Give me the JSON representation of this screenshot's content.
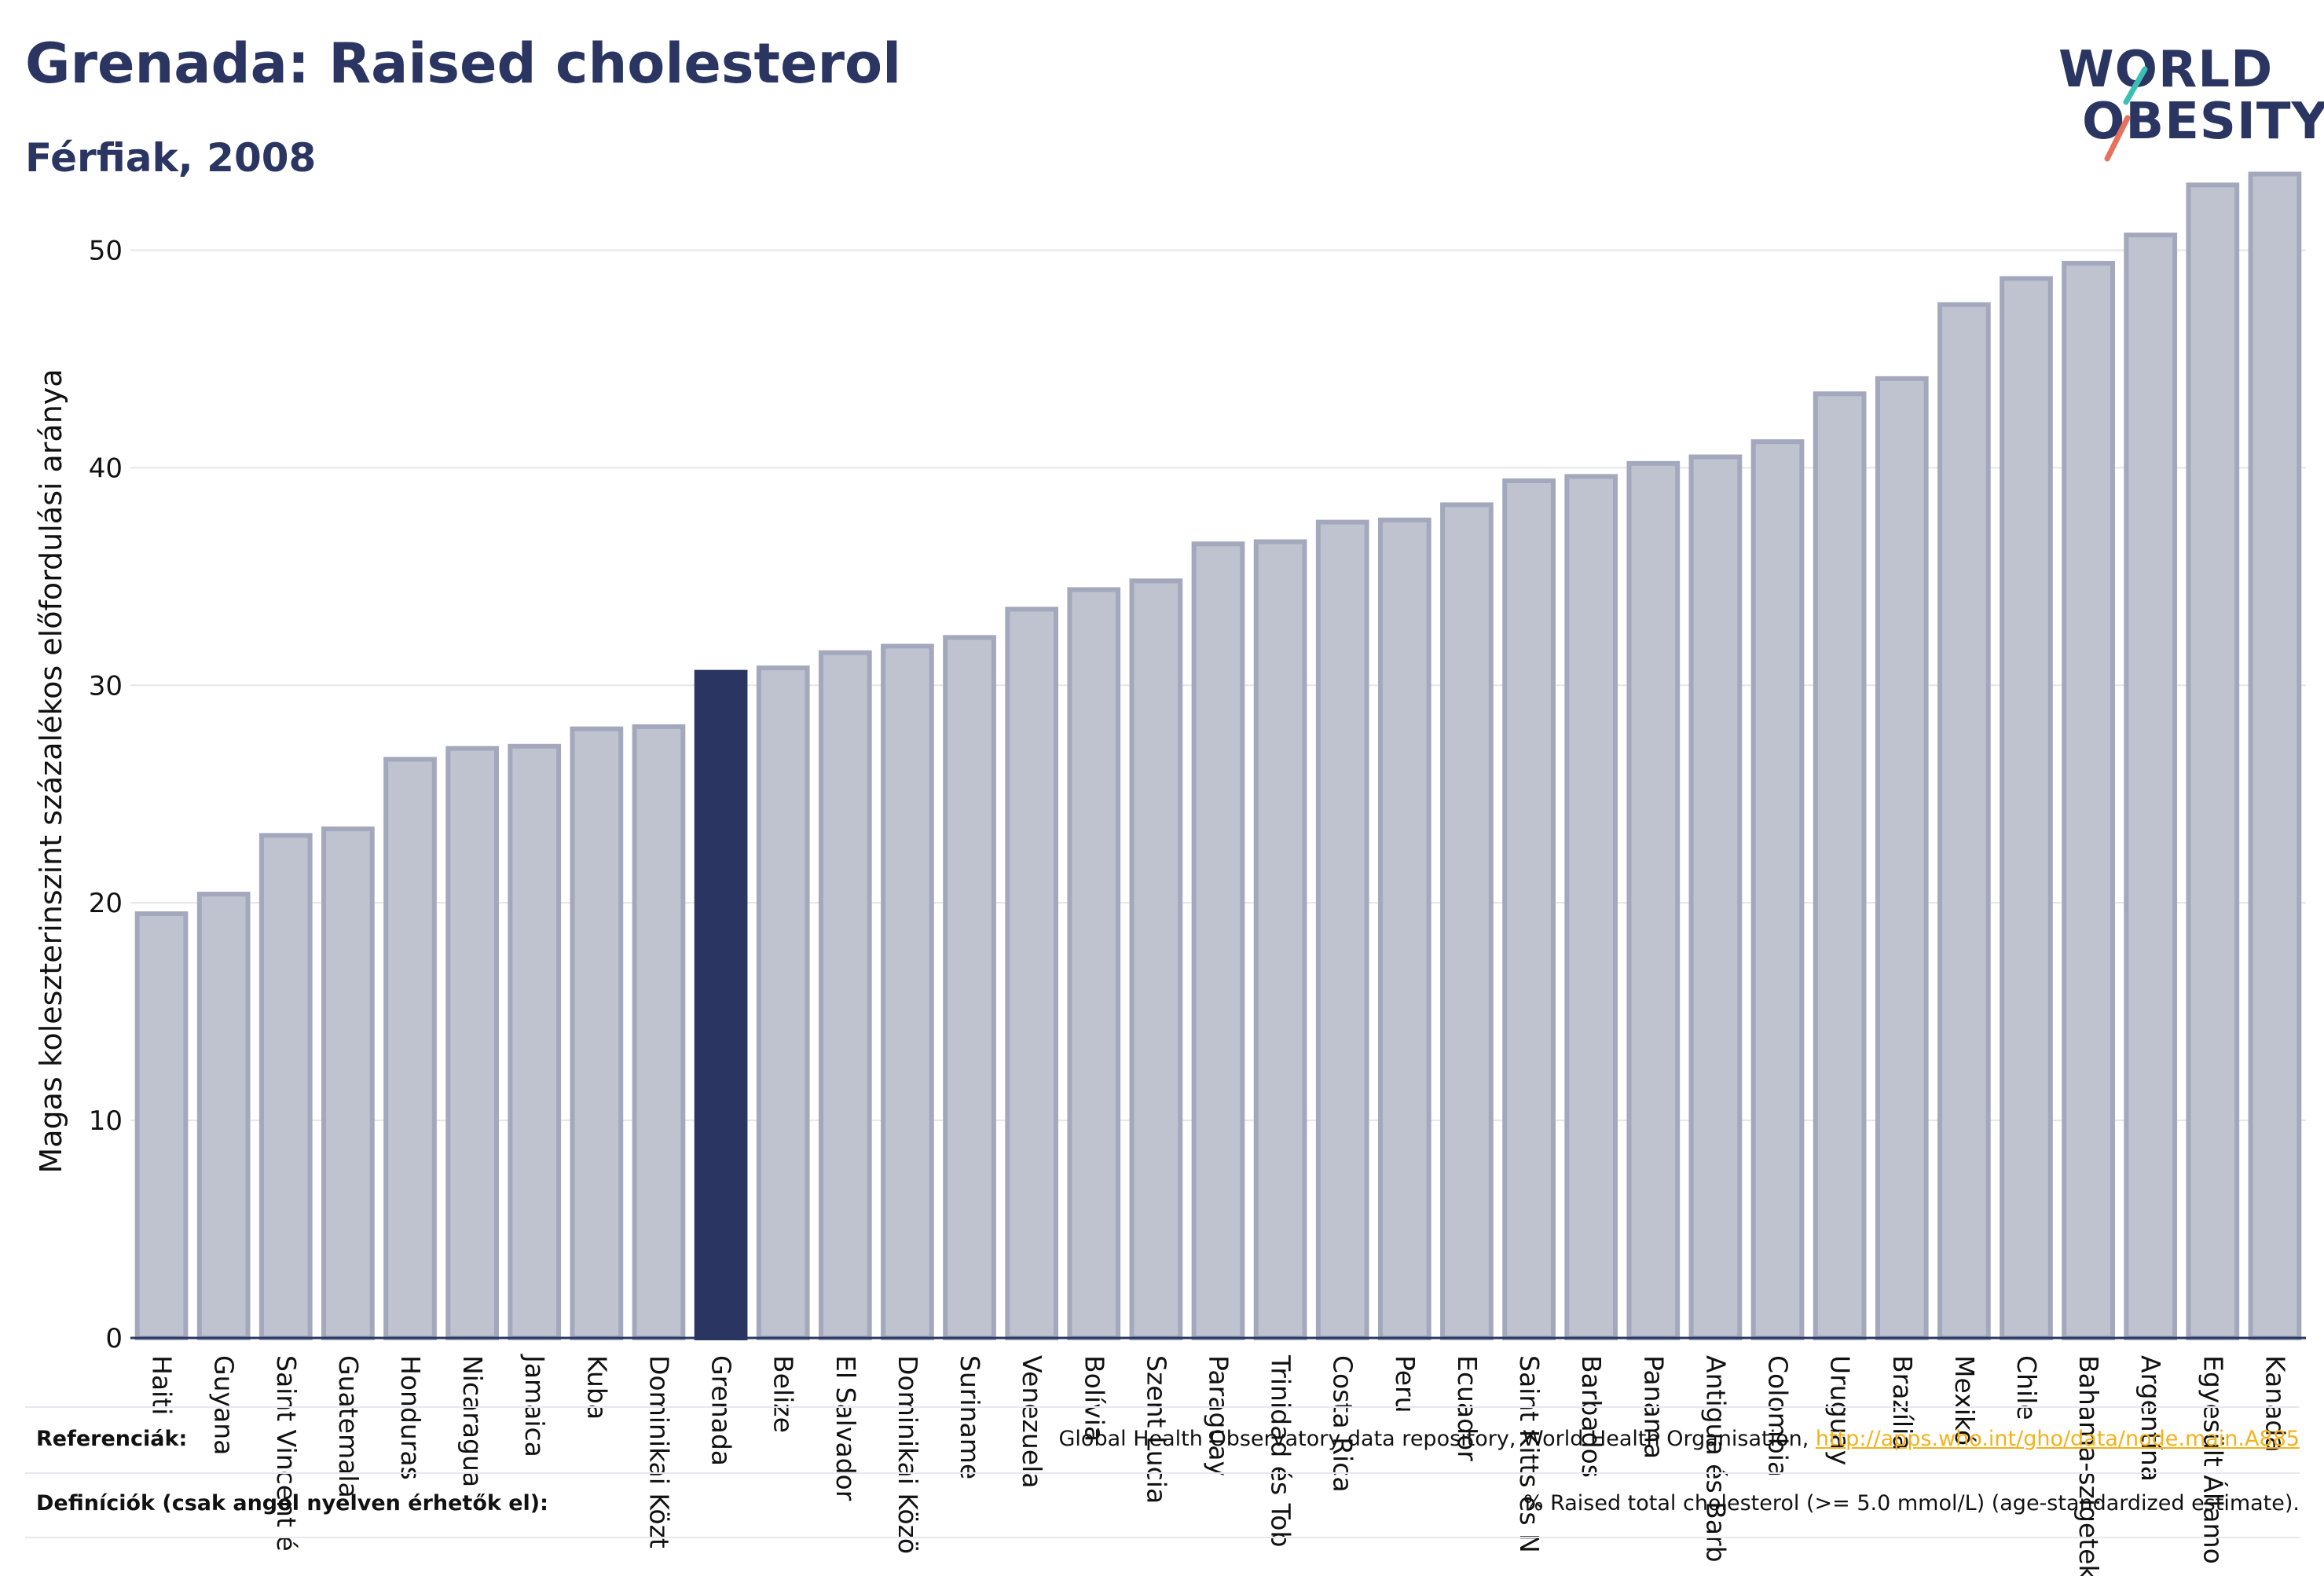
{
  "header": {
    "title": "Grenada: Raised cholesterol",
    "subtitle": "Férfiak, 2008"
  },
  "logo": {
    "line1": "WORLD",
    "line2": "OBESITY",
    "stroke_colors": [
      "#3bbfb3",
      "#e8705f"
    ]
  },
  "colors": {
    "bar_default": "#bfc2cf",
    "bar_default_outline": "#a3a8bd",
    "bar_highlight": "#2a3561",
    "axis_text": "#111111",
    "grid": "#e6e6e6",
    "link": "#f2b21b"
  },
  "chart_data": {
    "type": "bar",
    "ylabel": "Magas koleszterinszint százalékos előfordulási aránya",
    "ylim": [
      0,
      55
    ],
    "yticks": [
      0,
      10,
      20,
      30,
      40,
      50
    ],
    "grid": true,
    "highlight": "Grenada",
    "categories": [
      "Haiti",
      "Guyana",
      "Saint Vincent é",
      "Guatemala",
      "Honduras",
      "Nicaragua",
      "Jamaica",
      "Kuba",
      "Dominikai Közt",
      "Grenada",
      "Belize",
      "El Salvador",
      "Dominikai Közö",
      "Suriname",
      "Venezuela",
      "Bolívia",
      "Szent Lucia",
      "Paraguay",
      "Trinidad és Tob",
      "Costa Rica",
      "Peru",
      "Ecuador",
      "Saint Kitts és N",
      "Barbados",
      "Panama",
      "Antigua és Barb",
      "Colombia",
      "Uruguay",
      "Brazília",
      "Mexikó",
      "Chile",
      "Bahama-szigetek",
      "Argentína",
      "Egyesült Államo",
      "Kanada"
    ],
    "values": [
      19.5,
      20.4,
      23.1,
      23.4,
      26.6,
      27.1,
      27.2,
      28.0,
      28.1,
      30.6,
      30.8,
      31.5,
      31.8,
      32.2,
      33.5,
      34.4,
      34.8,
      36.5,
      36.6,
      37.5,
      37.6,
      38.3,
      39.4,
      39.6,
      40.2,
      40.5,
      41.2,
      43.4,
      44.1,
      47.5,
      48.7,
      49.4,
      50.7,
      53.0,
      53.5
    ]
  },
  "footer": {
    "references_label": "Referenciák:",
    "references_text": "Global Health Observatory data repository, World Health Organisation,",
    "references_link": "http://apps.who.int/gho/data/node.main.A885",
    "definitions_label": "Definíciók (csak angol nyelven érhetők el):",
    "definitions_text": "% Raised total cholesterol (>= 5.0 mmol/L) (age-standardized estimate)."
  }
}
